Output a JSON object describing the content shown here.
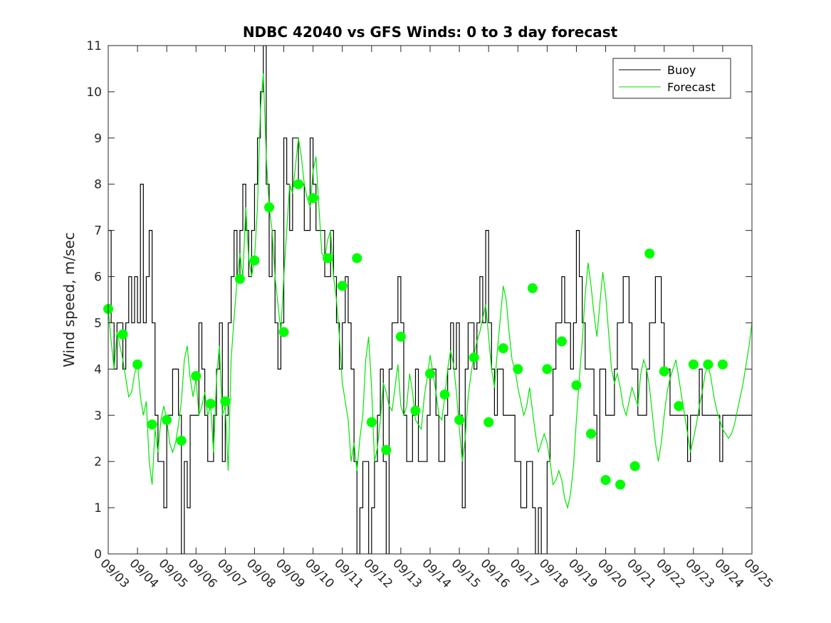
{
  "chart_data": {
    "type": "line",
    "title": "NDBC 42040 vs GFS Winds: 0 to 3 day forecast",
    "xlabel": "",
    "ylabel": "Wind speed, m/sec",
    "xlim": [
      "09/03",
      "09/25"
    ],
    "ylim": [
      0,
      11
    ],
    "x_tick_labels": [
      "09/03",
      "09/04",
      "09/05",
      "09/06",
      "09/07",
      "09/08",
      "09/09",
      "09/10",
      "09/11",
      "09/12",
      "09/13",
      "09/14",
      "09/15",
      "09/16",
      "09/17",
      "09/18",
      "09/19",
      "09/20",
      "09/21",
      "09/22",
      "09/23",
      "09/24",
      "09/25"
    ],
    "y_tick_labels": [
      "0",
      "1",
      "2",
      "3",
      "4",
      "5",
      "6",
      "7",
      "8",
      "9",
      "10",
      "11"
    ],
    "grid": false,
    "legend_position": "top-right",
    "colors": {
      "buoy": "#000000",
      "forecast": "#00e600",
      "markers": "#00ff00"
    },
    "series": [
      {
        "name": "Buoy",
        "style": "step",
        "days": [
          0,
          0.1,
          0.2,
          0.3,
          0.4,
          0.5,
          0.6,
          0.7,
          0.8,
          0.9,
          1.0,
          1.1,
          1.2,
          1.3,
          1.4,
          1.5,
          1.6,
          1.7,
          1.8,
          1.9,
          2.0,
          2.1,
          2.2,
          2.3,
          2.4,
          2.5,
          2.6,
          2.7,
          2.8,
          2.9,
          3.0,
          3.1,
          3.2,
          3.3,
          3.4,
          3.5,
          3.6,
          3.7,
          3.8,
          3.9,
          4.0,
          4.1,
          4.2,
          4.3,
          4.4,
          4.5,
          4.6,
          4.7,
          4.8,
          4.9,
          5.0,
          5.1,
          5.2,
          5.3,
          5.4,
          5.5,
          5.6,
          5.7,
          5.8,
          5.9,
          6.0,
          6.1,
          6.2,
          6.3,
          6.4,
          6.5,
          6.6,
          6.7,
          6.8,
          6.9,
          7.0,
          7.1,
          7.2,
          7.3,
          7.4,
          7.5,
          7.6,
          7.7,
          7.8,
          7.9,
          8.0,
          8.1,
          8.2,
          8.3,
          8.4,
          8.5,
          8.6,
          8.7,
          8.8,
          8.9,
          9.0,
          9.1,
          9.2,
          9.3,
          9.4,
          9.5,
          9.6,
          9.7,
          9.8,
          9.9,
          10.0,
          10.1,
          10.2,
          10.3,
          10.4,
          10.5,
          10.6,
          10.7,
          10.8,
          10.9,
          11.0,
          11.1,
          11.2,
          11.3,
          11.4,
          11.5,
          11.6,
          11.7,
          11.8,
          11.9,
          12.0,
          12.1,
          12.2,
          12.3,
          12.4,
          12.5,
          12.6,
          12.7,
          12.8,
          12.9,
          13.0,
          13.1,
          13.2,
          13.3,
          13.4,
          13.5,
          13.6,
          13.7,
          13.8,
          13.9,
          14.0,
          14.1,
          14.2,
          14.3,
          14.4,
          14.5,
          14.6,
          14.7,
          14.8,
          14.9,
          15.0,
          15.1,
          15.2,
          15.3,
          15.4,
          15.5,
          15.6,
          15.7,
          15.8,
          15.9,
          16.0,
          16.1,
          16.2,
          16.3,
          16.4,
          16.5,
          16.6,
          16.7,
          16.8,
          16.9,
          17.0,
          17.1,
          17.2,
          17.3,
          17.4,
          17.5,
          17.6,
          17.7,
          17.8,
          17.9,
          18.0,
          18.1,
          18.2,
          18.3,
          18.4,
          18.5,
          18.6,
          18.7,
          18.8,
          18.9,
          19.0,
          19.1,
          19.2,
          19.3,
          19.4,
          19.5,
          19.6,
          19.7,
          19.8,
          19.9,
          20.0,
          20.1,
          20.2,
          20.3,
          20.4,
          20.5,
          20.6,
          20.7,
          20.8,
          20.9,
          21.0,
          21.1,
          21.2,
          21.3,
          21.4,
          21.5,
          21.6,
          21.7,
          21.8,
          21.9,
          22.0
        ],
        "values": [
          7,
          5,
          4,
          5,
          5,
          4,
          5,
          6,
          5,
          6,
          5,
          8,
          5,
          6,
          7,
          5,
          3,
          2,
          2,
          1,
          3,
          3,
          4,
          4,
          3,
          0,
          2,
          1,
          3,
          3,
          3,
          5,
          4,
          3,
          2,
          2,
          3,
          4,
          5,
          2,
          3,
          5,
          6,
          7,
          6,
          7,
          8,
          7,
          6,
          7,
          8,
          9,
          10,
          11,
          8,
          6,
          7,
          5,
          4,
          5,
          9,
          8,
          7,
          9,
          9,
          8,
          8,
          7,
          7,
          9,
          8,
          7,
          7,
          7,
          6,
          6,
          7,
          6,
          5,
          4,
          5,
          6,
          5,
          4,
          2,
          0,
          1,
          2,
          2,
          0,
          1,
          2,
          3,
          4,
          2,
          0,
          4,
          5,
          5,
          6,
          5,
          3,
          2,
          2,
          3,
          4,
          2,
          2,
          2,
          3,
          4,
          4,
          3,
          2,
          2,
          3,
          4,
          5,
          4,
          5,
          3,
          1,
          4,
          5,
          5,
          4,
          5,
          6,
          5,
          7,
          5,
          4,
          3,
          4,
          4,
          3,
          3,
          3,
          3,
          2,
          2,
          1,
          1,
          2,
          2,
          1,
          0,
          1,
          0,
          0,
          2,
          3,
          4,
          5,
          5,
          6,
          5,
          5,
          4,
          5,
          7,
          6,
          5,
          4,
          4,
          4,
          3,
          2,
          4,
          4,
          3,
          3,
          3,
          4,
          5,
          5,
          6,
          6,
          5,
          4,
          4,
          3,
          3,
          3,
          4,
          5,
          5,
          6,
          6,
          5,
          4,
          4,
          3,
          3,
          3,
          3,
          3,
          3,
          2,
          3,
          3,
          3,
          4,
          3,
          3,
          3,
          3,
          3,
          3,
          2,
          3,
          3,
          3,
          3,
          3,
          3,
          3,
          3,
          3,
          3,
          3
        ]
      },
      {
        "name": "Forecast",
        "style": "line",
        "days": [
          0.0,
          0.1,
          0.2,
          0.3,
          0.4,
          0.5,
          0.6,
          0.7,
          0.8,
          0.9,
          1.0,
          1.1,
          1.2,
          1.3,
          1.4,
          1.5,
          1.6,
          1.7,
          1.8,
          1.9,
          2.0,
          2.1,
          2.2,
          2.3,
          2.4,
          2.5,
          2.6,
          2.7,
          2.8,
          2.9,
          3.0,
          3.1,
          3.2,
          3.3,
          3.4,
          3.5,
          3.6,
          3.7,
          3.8,
          3.9,
          4.0,
          4.1,
          4.2,
          4.3,
          4.4,
          4.5,
          4.6,
          4.7,
          4.8,
          4.9,
          5.0,
          5.1,
          5.2,
          5.3,
          5.4,
          5.5,
          5.6,
          5.7,
          5.8,
          5.9,
          6.0,
          6.1,
          6.2,
          6.3,
          6.4,
          6.5,
          6.6,
          6.7,
          6.8,
          6.9,
          7.0,
          7.1,
          7.2,
          7.3,
          7.4,
          7.5,
          7.6,
          7.7,
          7.8,
          7.9,
          8.0,
          8.1,
          8.2,
          8.3,
          8.4,
          8.5,
          8.6,
          8.7,
          8.8,
          8.9,
          9.0,
          9.1,
          9.2,
          9.3,
          9.4,
          9.5,
          9.6,
          9.7,
          9.8,
          9.9,
          10.0,
          10.1,
          10.2,
          10.3,
          10.4,
          10.5,
          10.6,
          10.7,
          10.8,
          10.9,
          11.0,
          11.1,
          11.2,
          11.3,
          11.4,
          11.5,
          11.6,
          11.7,
          11.8,
          11.9,
          12.0,
          12.1,
          12.2,
          12.3,
          12.4,
          12.5,
          12.6,
          12.7,
          12.8,
          12.9,
          13.0,
          13.1,
          13.2,
          13.3,
          13.4,
          13.5,
          13.6,
          13.7,
          13.8,
          13.9,
          14.0,
          14.1,
          14.2,
          14.3,
          14.4,
          14.5,
          14.6,
          14.7,
          14.8,
          14.9,
          15.0,
          15.1,
          15.2,
          15.3,
          15.4,
          15.5,
          15.6,
          15.7,
          15.8,
          15.9,
          16.0,
          16.1,
          16.2,
          16.3,
          16.4,
          16.5,
          16.6,
          16.7,
          16.8,
          16.9,
          17.0,
          17.1,
          17.2,
          17.3,
          17.4,
          17.5,
          17.6,
          17.7,
          17.8,
          17.9,
          18.0,
          18.1,
          18.2,
          18.3,
          18.4,
          18.5,
          18.6,
          18.7,
          18.8,
          18.9,
          19.0,
          19.1,
          19.2,
          19.3,
          19.4,
          19.5,
          19.6,
          19.7,
          19.8,
          19.9,
          20.0,
          20.1,
          20.2,
          20.3,
          20.4,
          20.5,
          20.6,
          20.7,
          20.8,
          20.9,
          21.0,
          21.1,
          21.2,
          21.3,
          21.4,
          21.5,
          21.6,
          21.7,
          21.8,
          21.9,
          22.0
        ],
        "values": [
          5.3,
          4.6,
          4.0,
          4.8,
          4.5,
          4.2,
          3.8,
          3.4,
          3.5,
          3.9,
          4.1,
          3.4,
          3.0,
          3.3,
          2.0,
          1.5,
          2.7,
          2.2,
          2.9,
          3.2,
          2.9,
          2.4,
          2.2,
          2.4,
          2.8,
          3.3,
          4.2,
          4.5,
          3.8,
          3.4,
          3.8,
          3.0,
          3.2,
          3.5,
          3.0,
          3.2,
          2.2,
          3.8,
          4.5,
          3.0,
          3.2,
          1.8,
          4.2,
          5.1,
          5.9,
          6.5,
          6.0,
          7.5,
          6.4,
          6.0,
          6.4,
          7.5,
          9.6,
          10.4,
          8.6,
          7.5,
          7.0,
          6.0,
          5.4,
          4.8,
          6.0,
          7.0,
          8.0,
          7.8,
          8.4,
          9.0,
          8.6,
          8.0,
          7.7,
          7.5,
          8.3,
          8.6,
          7.5,
          6.5,
          6.4,
          6.8,
          7.0,
          6.0,
          5.5,
          4.7,
          3.7,
          3.3,
          2.9,
          2.0,
          2.4,
          1.8,
          2.5,
          3.0,
          4.2,
          4.7,
          3.6,
          2.0,
          2.3,
          2.9,
          3.7,
          3.5,
          3.2,
          3.1,
          3.6,
          4.1,
          3.2,
          3.0,
          3.2,
          3.9,
          3.5,
          2.9,
          2.8,
          2.7,
          3.4,
          3.8,
          4.3,
          3.9,
          3.5,
          3.0,
          2.9,
          3.4,
          4.0,
          4.4,
          4.1,
          3.5,
          2.7,
          2.0,
          2.5,
          3.4,
          3.9,
          4.3,
          4.6,
          4.8,
          5.1,
          5.4,
          4.7,
          4.0,
          3.6,
          4.4,
          5.1,
          5.8,
          5.5,
          4.8,
          4.2,
          4.0,
          3.6,
          3.3,
          3.0,
          3.2,
          3.6,
          3.1,
          2.6,
          2.2,
          2.4,
          2.6,
          2.4,
          2.0,
          1.5,
          1.6,
          1.8,
          1.6,
          1.2,
          1.0,
          1.3,
          1.9,
          2.9,
          3.8,
          4.6,
          5.6,
          6.3,
          5.8,
          5.2,
          4.7,
          5.4,
          6.1,
          5.6,
          4.8,
          4.0,
          3.7,
          3.9,
          3.6,
          3.2,
          3.0,
          3.3,
          3.6,
          3.4,
          3.2,
          3.9,
          4.2,
          4.0,
          3.6,
          3.0,
          2.4,
          2.0,
          2.4,
          3.0,
          3.5,
          3.8,
          4.0,
          4.2,
          3.8,
          3.4,
          3.0,
          2.6,
          2.2,
          2.5,
          2.8,
          3.2,
          3.5,
          3.9,
          4.1,
          3.8,
          3.4,
          3.1,
          2.9,
          2.7,
          2.6,
          2.5,
          2.6,
          2.8,
          3.1,
          3.4,
          3.7,
          4.1,
          4.5,
          5.0
        ]
      },
      {
        "name": "",
        "style": "markers",
        "days": [
          0.0,
          0.5,
          1.0,
          1.5,
          2.0,
          2.5,
          3.0,
          3.5,
          4.0,
          4.5,
          5.0,
          5.5,
          6.0,
          6.5,
          7.0,
          7.5,
          8.0,
          8.5,
          9.0,
          9.5,
          10.0,
          10.5,
          11.0,
          11.5,
          12.0,
          12.5,
          13.0,
          13.5,
          14.0,
          14.5,
          15.0,
          15.5,
          16.0,
          16.5,
          17.0,
          17.5,
          18.0,
          18.5,
          19.0,
          19.5,
          20.0,
          20.5,
          21.0
        ],
        "values": [
          5.3,
          4.75,
          4.1,
          2.8,
          2.9,
          2.45,
          3.85,
          3.25,
          3.3,
          5.95,
          6.35,
          7.5,
          4.8,
          8.0,
          7.7,
          6.4,
          5.8,
          6.4,
          2.85,
          2.25,
          4.7,
          3.1,
          3.9,
          3.45,
          2.9,
          4.25,
          2.85,
          4.45,
          4.0,
          5.75,
          4.0,
          4.6,
          3.65,
          2.6,
          1.6,
          1.5,
          1.9,
          6.5,
          3.95,
          3.2,
          4.1,
          4.1,
          4.1
        ]
      }
    ]
  }
}
